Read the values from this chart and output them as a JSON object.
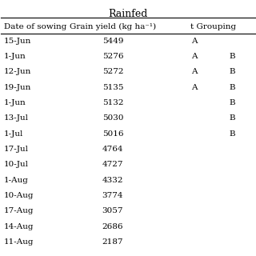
{
  "title": "Rainfed",
  "col_headers": [
    "Date of sowing",
    "Grain yield (kg ha⁻¹)",
    "t Grouping"
  ],
  "rows": [
    {
      "date": "15-Jun",
      "yield": "5449",
      "grp_a": "A",
      "grp_b": ""
    },
    {
      "date": "1-Jun",
      "yield": "5276",
      "grp_a": "A",
      "grp_b": "B"
    },
    {
      "date": "12-Jun",
      "yield": "5272",
      "grp_a": "A",
      "grp_b": "B"
    },
    {
      "date": "19-Jun",
      "yield": "5135",
      "grp_a": "A",
      "grp_b": "B"
    },
    {
      "date": "1-Jun",
      "yield": "5132",
      "grp_a": "",
      "grp_b": "B"
    },
    {
      "date": "13-Jul",
      "yield": "5030",
      "grp_a": "",
      "grp_b": "B"
    },
    {
      "date": "1-Jul",
      "yield": "5016",
      "grp_a": "",
      "grp_b": "B"
    },
    {
      "date": "17-Jul",
      "yield": "4764",
      "grp_a": "",
      "grp_b": ""
    },
    {
      "date": "10-Jul",
      "yield": "4727",
      "grp_a": "",
      "grp_b": ""
    },
    {
      "date": "1-Aug",
      "yield": "4332",
      "grp_a": "",
      "grp_b": ""
    },
    {
      "date": "10-Aug",
      "yield": "3774",
      "grp_a": "",
      "grp_b": ""
    },
    {
      "date": "17-Aug",
      "yield": "3057",
      "grp_a": "",
      "grp_b": ""
    },
    {
      "date": "14-Aug",
      "yield": "2686",
      "grp_a": "",
      "grp_b": ""
    },
    {
      "date": "11-Aug",
      "yield": "2187",
      "grp_a": "",
      "grp_b": ""
    }
  ],
  "bg_color": "#ffffff",
  "text_color": "#000000",
  "line_color": "#000000",
  "font_size": 7.5,
  "header_font_size": 7.5,
  "title_font_size": 9
}
